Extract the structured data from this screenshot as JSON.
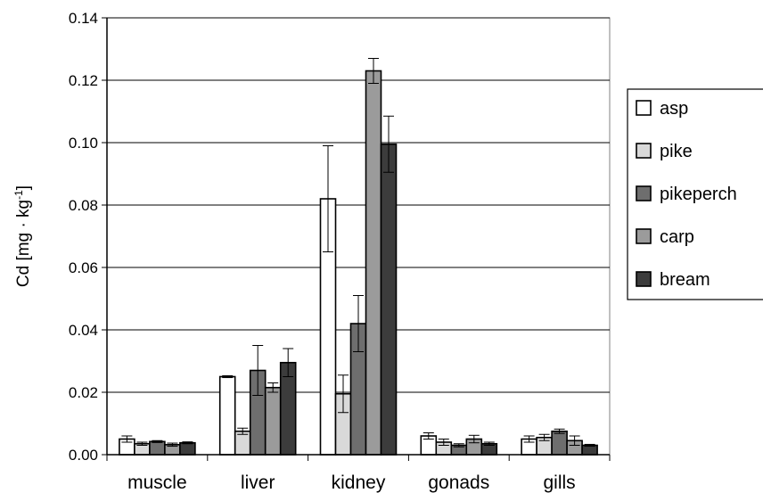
{
  "chart_data": {
    "type": "bar",
    "ylabel_main": "Cd [mg · kg",
    "ylabel_sup": "-1",
    "ylabel_end": "]",
    "ylim": [
      0,
      0.14
    ],
    "yticks": [
      "0.00",
      "0.02",
      "0.04",
      "0.06",
      "0.08",
      "0.10",
      "0.12",
      "0.14"
    ],
    "ytick_values": [
      0,
      0.02,
      0.04,
      0.06,
      0.08,
      0.1,
      0.12,
      0.14
    ],
    "grid": true,
    "legend_position": "right",
    "categories": [
      "muscle",
      "liver",
      "kidney",
      "gonads",
      "gills"
    ],
    "series": [
      {
        "name": "asp",
        "color": "#ffffff",
        "values": [
          0.005,
          0.025,
          0.082,
          0.006,
          0.005
        ],
        "errors": [
          0.001,
          0.0003,
          0.017,
          0.001,
          0.001
        ]
      },
      {
        "name": "pike",
        "color": "#d9d9d9",
        "values": [
          0.0035,
          0.0075,
          0.0195,
          0.004,
          0.0055
        ],
        "errors": [
          0.0005,
          0.001,
          0.006,
          0.001,
          0.001
        ]
      },
      {
        "name": "pikeperch",
        "color": "#6e6e6e",
        "values": [
          0.0042,
          0.027,
          0.042,
          0.003,
          0.0075
        ],
        "errors": [
          0.0003,
          0.008,
          0.009,
          0.0005,
          0.0007
        ]
      },
      {
        "name": "carp",
        "color": "#9b9b9b",
        "values": [
          0.0032,
          0.0215,
          0.123,
          0.005,
          0.0045
        ],
        "errors": [
          0.0005,
          0.0015,
          0.004,
          0.0012,
          0.0015
        ]
      },
      {
        "name": "bream",
        "color": "#3c3c3c",
        "values": [
          0.0038,
          0.0295,
          0.0995,
          0.0035,
          0.003
        ],
        "errors": [
          0.0003,
          0.0045,
          0.009,
          0.0005,
          0.0003
        ]
      }
    ]
  }
}
